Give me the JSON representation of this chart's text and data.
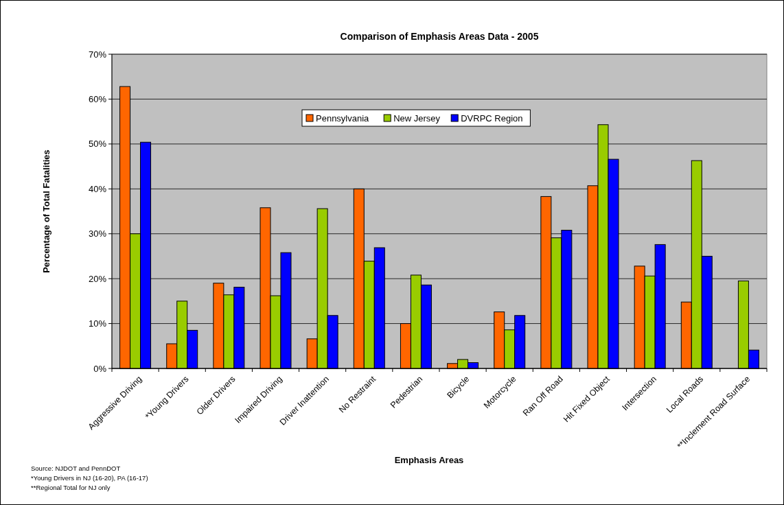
{
  "chart_data": {
    "type": "bar",
    "title": "Comparison of Emphasis Areas Data - 2005",
    "xlabel": "Emphasis Areas",
    "ylabel": "Percentage of Total Fatalities",
    "categories": [
      "Aggressive Driving",
      "*Young Drivers",
      "Older Drivers",
      "Impaired Driving",
      "Driver Inattention",
      "No Restraint",
      "Pedestrian",
      "Bicycle",
      "Motorcycle",
      "Ran Off Road",
      "Hit Fixed Object",
      "Intersection",
      "Local Roads",
      "**Inclement Road Surface"
    ],
    "series": [
      {
        "name": "Pennsylvania",
        "color": "#ff6600",
        "values": [
          62.8,
          5.5,
          19.0,
          35.8,
          6.6,
          40.0,
          10.0,
          1.1,
          12.6,
          38.3,
          40.7,
          22.8,
          14.8,
          null
        ]
      },
      {
        "name": "New Jersey",
        "color": "#99cc00",
        "values": [
          30.0,
          15.0,
          16.4,
          16.2,
          35.6,
          23.9,
          20.8,
          2.0,
          8.6,
          29.1,
          54.3,
          20.6,
          46.3,
          19.5
        ]
      },
      {
        "name": "DVRPC Region",
        "color": "#0000ff",
        "values": [
          50.4,
          8.5,
          18.1,
          25.8,
          11.8,
          26.9,
          18.6,
          1.3,
          11.8,
          30.8,
          46.6,
          27.6,
          25.0,
          4.1
        ]
      }
    ],
    "ylim": [
      0,
      70
    ],
    "yticks": [
      {
        "value": 0,
        "label": "0%"
      },
      {
        "value": 10,
        "label": "10%"
      },
      {
        "value": 20,
        "label": "20%"
      },
      {
        "value": 30,
        "label": "30%"
      },
      {
        "value": 40,
        "label": "40%"
      },
      {
        "value": 50,
        "label": "50%"
      },
      {
        "value": 60,
        "label": "60%"
      },
      {
        "value": 70,
        "label": "70%"
      }
    ],
    "grid": "y",
    "legend": "top",
    "annotations": [
      "Source: NJDOT and PennDOT",
      "*Young Drivers in NJ (16-20), PA (16-17)",
      "**Regional Total for NJ only"
    ]
  }
}
